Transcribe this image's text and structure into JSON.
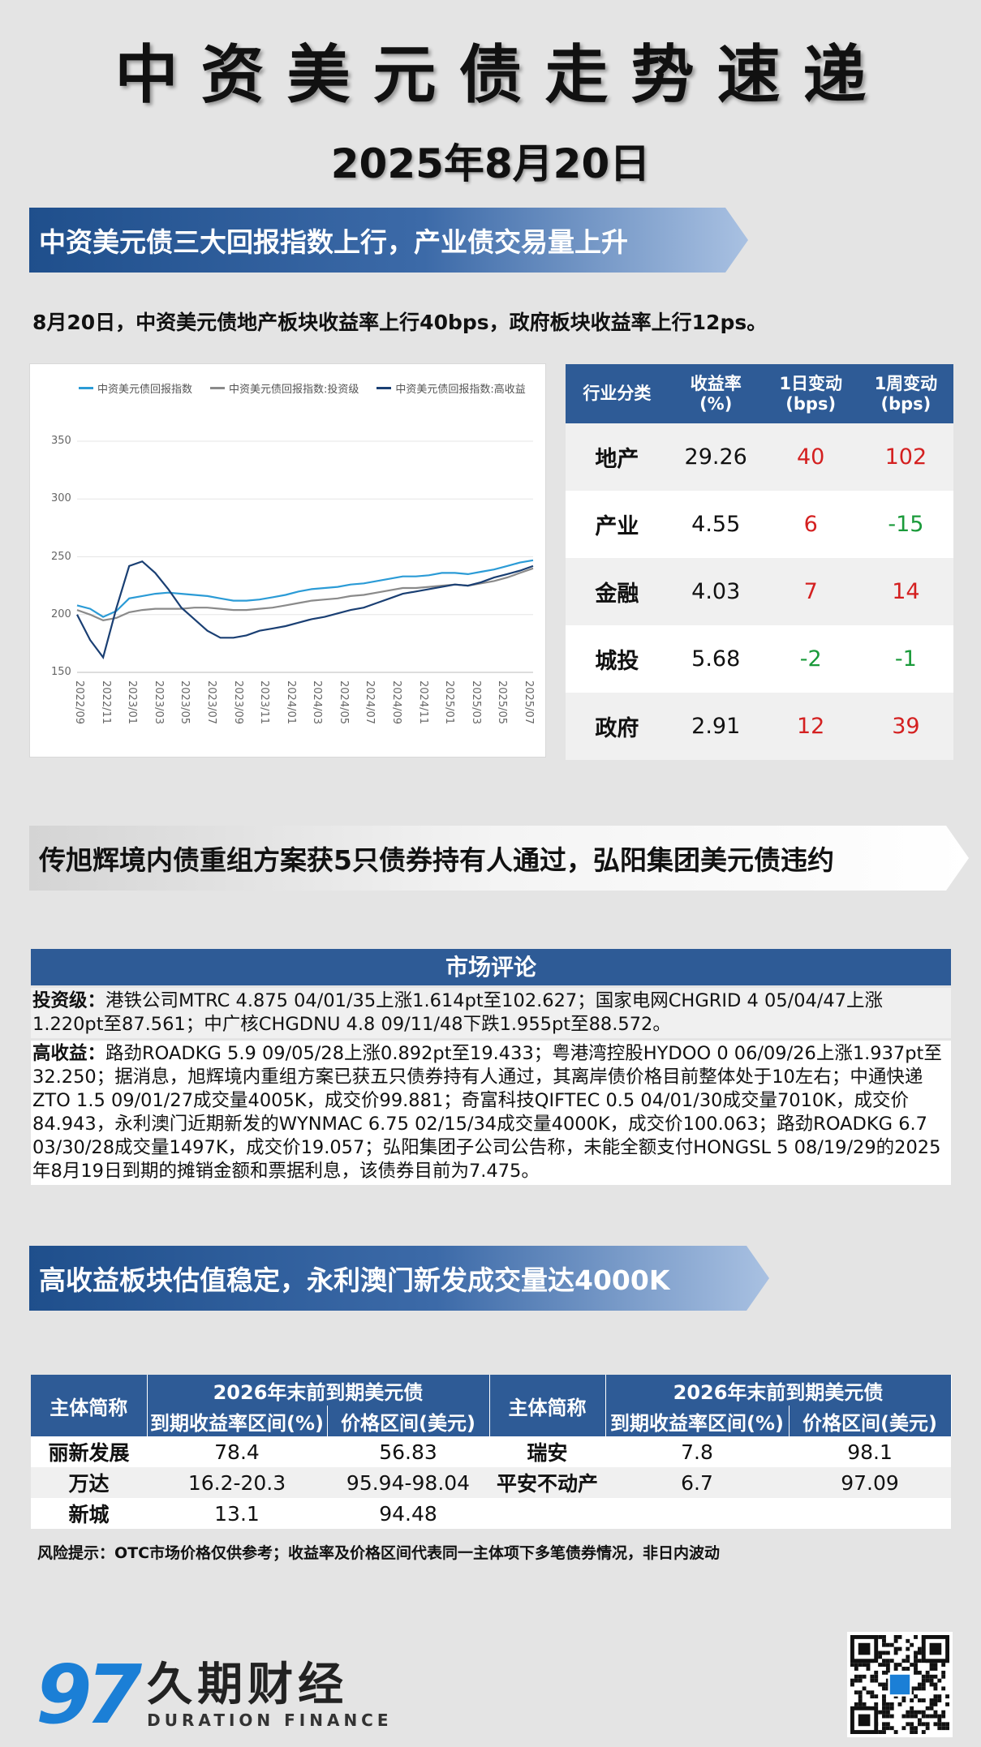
{
  "header": {
    "title": "中资美元债走势速递",
    "date": "2025年8月20日"
  },
  "section1": {
    "banner": "中资美元债三大回报指数上行，产业债交易量上升",
    "summary": "8月20日，中资美元债地产板块收益率上行40bps，政府板块收益率上行12ps。"
  },
  "chart_data": {
    "type": "line",
    "title": "",
    "xlabel": "",
    "ylabel": "",
    "ylim": [
      150,
      350
    ],
    "yticks": [
      "350",
      "300",
      "250",
      "200",
      "150"
    ],
    "xticks": [
      "2022/09",
      "2022/11",
      "2023/01",
      "2023/03",
      "2023/05",
      "2023/07",
      "2023/09",
      "2023/11",
      "2024/01",
      "2024/03",
      "2024/05",
      "2024/07",
      "2024/09",
      "2024/11",
      "2025/01",
      "2025/03",
      "2025/05",
      "2025/07"
    ],
    "legend": "top",
    "x": [
      "2022/09",
      "2022/10",
      "2022/11",
      "2022/12",
      "2023/01",
      "2023/02",
      "2023/03",
      "2023/04",
      "2023/05",
      "2023/06",
      "2023/07",
      "2023/08",
      "2023/09",
      "2023/10",
      "2023/11",
      "2023/12",
      "2024/01",
      "2024/02",
      "2024/03",
      "2024/04",
      "2024/05",
      "2024/06",
      "2024/07",
      "2024/08",
      "2024/09",
      "2024/10",
      "2024/11",
      "2024/12",
      "2025/01",
      "2025/02",
      "2025/03",
      "2025/04",
      "2025/05",
      "2025/06",
      "2025/07",
      "2025/08"
    ],
    "series": [
      {
        "name": "中资美元债回报指数",
        "color": "#2b9bd6",
        "values": [
          208,
          205,
          198,
          203,
          214,
          216,
          218,
          219,
          218,
          217,
          216,
          214,
          212,
          212,
          213,
          215,
          217,
          220,
          222,
          223,
          224,
          226,
          227,
          229,
          231,
          233,
          233,
          234,
          236,
          236,
          235,
          237,
          239,
          242,
          245,
          247
        ]
      },
      {
        "name": "中资美元债回报指数:投资级",
        "color": "#8a8a8a",
        "values": [
          204,
          200,
          195,
          197,
          202,
          204,
          205,
          205,
          205,
          206,
          206,
          205,
          204,
          204,
          205,
          206,
          208,
          210,
          212,
          213,
          214,
          216,
          217,
          219,
          221,
          223,
          223,
          224,
          225,
          226,
          225,
          227,
          229,
          232,
          236,
          240
        ]
      },
      {
        "name": "中资美元债回报指数:高收益",
        "color": "#1a3f73",
        "values": [
          200,
          178,
          163,
          205,
          242,
          246,
          236,
          222,
          206,
          196,
          186,
          180,
          180,
          182,
          186,
          188,
          190,
          193,
          196,
          198,
          201,
          204,
          206,
          210,
          214,
          218,
          220,
          222,
          224,
          226,
          225,
          228,
          232,
          235,
          238,
          242
        ]
      }
    ]
  },
  "industry_table": {
    "headers": [
      "行业分类",
      "收益率\n(%)",
      "1日变动\n(bps)",
      "1周变动\n(bps)"
    ],
    "rows": [
      {
        "category": "地产",
        "yield": "29.26",
        "d1": "40",
        "w1": "102",
        "d1_color": "red",
        "w1_color": "red"
      },
      {
        "category": "产业",
        "yield": "4.55",
        "d1": "6",
        "w1": "-15",
        "d1_color": "red",
        "w1_color": "green"
      },
      {
        "category": "金融",
        "yield": "4.03",
        "d1": "7",
        "w1": "14",
        "d1_color": "red",
        "w1_color": "red"
      },
      {
        "category": "城投",
        "yield": "5.68",
        "d1": "-2",
        "w1": "-1",
        "d1_color": "green",
        "w1_color": "green"
      },
      {
        "category": "政府",
        "yield": "2.91",
        "d1": "12",
        "w1": "39",
        "d1_color": "red",
        "w1_color": "red"
      }
    ]
  },
  "section2": {
    "banner": "传旭辉境内债重组方案获5只债券持有人通过，弘阳集团美元债违约",
    "comment_title": "市场评论",
    "ig_label": "投资级：",
    "ig_text": "港铁公司MTRC 4.875 04/01/35上涨1.614pt至102.627；国家电网CHGRID 4 05/04/47上涨1.220pt至87.561；中广核CHGDNU 4.8 09/11/48下跌1.955pt至88.572。",
    "hy_label": "高收益：",
    "hy_text": "路劲ROADKG 5.9 09/05/28上涨0.892pt至19.433；粤港湾控股HYDOO 0 06/09/26上涨1.937pt至32.250；据消息，旭辉境内重组方案已获五只债券持有人通过，其离岸债价格目前整体处于10左右；中通快递ZTO 1.5 09/01/27成交量4005K，成交价99.881；奇富科技QIFTEC 0.5 04/01/30成交量7010K，成交价84.943，永利澳门近期新发的WYNMAC 6.75 02/15/34成交量4000K，成交价100.063；路劲ROADKG 6.7 03/30/28成交量1497K，成交价19.057；弘阳集团子公司公告称，未能全额支付HONGSL 5 08/19/29的2025年8月19日到期的摊销金额和票据利息，该债券目前为7.475。"
  },
  "section3": {
    "banner": "高收益板块估值稳定，永利澳门新发成交量达4000K",
    "table": {
      "name_header": "主体简称",
      "group_header": "2026年末前到期美元债",
      "yield_header": "到期收益率区间(%)",
      "price_header": "价格区间(美元)",
      "left_rows": [
        {
          "name": "丽新发展",
          "yield": "78.4",
          "price": "56.83"
        },
        {
          "name": "万达",
          "yield": "16.2-20.3",
          "price": "95.94-98.04"
        },
        {
          "name": "新城",
          "yield": "13.1",
          "price": "94.48"
        }
      ],
      "right_rows": [
        {
          "name": "瑞安",
          "yield": "7.8",
          "price": "98.1"
        },
        {
          "name": "平安不动产",
          "yield": "6.7",
          "price": "97.09"
        },
        {
          "name": "",
          "yield": "",
          "price": ""
        }
      ]
    },
    "risk_note": "风险提示：OTC市场价格仅供参考；收益率及价格区间代表同一主体项下多笔债券情况，非日内波动"
  },
  "footer": {
    "logo_mark": "97",
    "logo_cn": "久期财经",
    "logo_en": "DURATION FINANCE",
    "brand_color": "#1b7fd6"
  }
}
